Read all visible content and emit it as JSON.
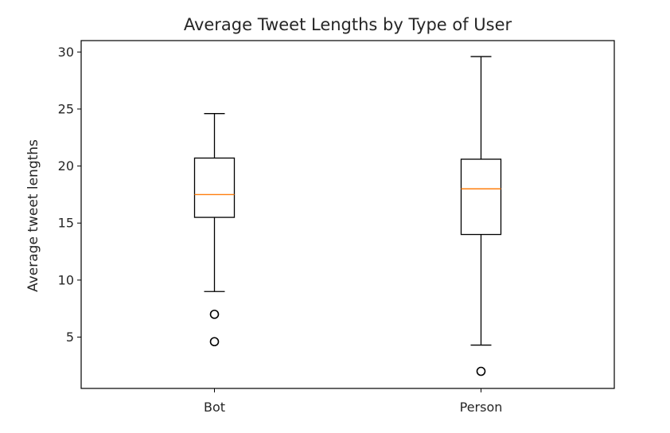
{
  "chart_data": {
    "type": "box",
    "title": "Average Tweet Lengths by Type of User",
    "xlabel": "",
    "ylabel": "Average tweet lengths",
    "categories": [
      "Bot",
      "Person"
    ],
    "boxes": [
      {
        "category": "Bot",
        "whisker_low": 9.0,
        "q1": 15.5,
        "median": 17.5,
        "q3": 20.7,
        "whisker_high": 24.6,
        "outliers": [
          7.0,
          4.6
        ]
      },
      {
        "category": "Person",
        "whisker_low": 4.3,
        "q1": 14.0,
        "median": 18.0,
        "q3": 20.6,
        "whisker_high": 29.6,
        "outliers": [
          2.0
        ]
      }
    ],
    "ylim": [
      0.5,
      31.0
    ],
    "yticks": [
      5,
      10,
      15,
      20,
      25,
      30
    ],
    "grid": false,
    "legend": "none",
    "colors": {
      "box": "#000000",
      "median": "#ff7f0e",
      "text": "#262626"
    }
  }
}
